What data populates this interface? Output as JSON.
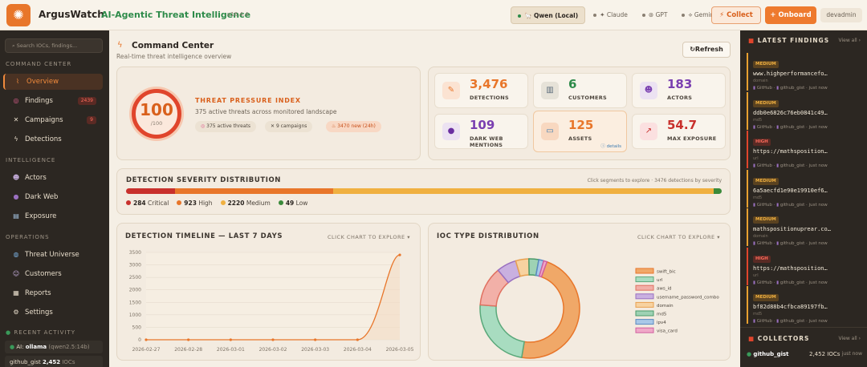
{
  "header": {
    "brand": "ArgusWatch",
    "brand_sub": "AI-Agentic Threat Intelligence",
    "version": "v16.4.4",
    "models": [
      "Qwen (Local)",
      "Claude",
      "GPT",
      "Gemini"
    ],
    "collect": "Collect",
    "onboard": "Onboard",
    "user": "devadmin"
  },
  "sidebar": {
    "search_placeholder": "Search IOCs, findings...",
    "sections": [
      "COMMAND CENTER",
      "INTELLIGENCE",
      "OPERATIONS",
      "RECENT ACTIVITY"
    ],
    "items": [
      {
        "label": "Overview",
        "icon": "pulse-icon"
      },
      {
        "label": "Findings",
        "icon": "target-icon",
        "badge": "2439"
      },
      {
        "label": "Campaigns",
        "icon": "swords-icon",
        "badge": "9"
      },
      {
        "label": "Detections",
        "icon": "bolt-icon"
      },
      {
        "label": "Actors",
        "icon": "actors-icon"
      },
      {
        "label": "Dark Web",
        "icon": "darkweb-icon"
      },
      {
        "label": "Exposure",
        "icon": "chart-icon"
      },
      {
        "label": "Threat Universe",
        "icon": "globe-icon"
      },
      {
        "label": "Customers",
        "icon": "customers-icon"
      },
      {
        "label": "Reports",
        "icon": "reports-icon"
      },
      {
        "label": "Settings",
        "icon": "gear-icon"
      }
    ],
    "recent": [
      {
        "name": "AI:",
        "value": "ollama",
        "extra": "(qwen2.5:14b)"
      },
      {
        "name": "github_gist",
        "value": "2,452",
        "extra": "IOCs"
      }
    ]
  },
  "main": {
    "title": "Command Center",
    "subtitle": "Real-time threat intelligence overview",
    "refresh": "Refresh",
    "tpi": {
      "score": "100",
      "denominator": "/100",
      "title": "THREAT PRESSURE INDEX",
      "desc": "375 active threats across monitored landscape",
      "pills": [
        "375 active threats",
        "9 campaigns",
        "3470 new (24h)"
      ]
    },
    "stats": [
      {
        "value": "3,476",
        "label": "DETECTIONS",
        "color": "#e8762a",
        "icon": "detections-icon"
      },
      {
        "value": "6",
        "label": "CUSTOMERS",
        "color": "#2e8b4a",
        "icon": "building-icon"
      },
      {
        "value": "183",
        "label": "ACTORS",
        "color": "#7a3fb0",
        "icon": "actors-icon"
      },
      {
        "value": "109",
        "label": "DARK WEB\nMENTIONS",
        "color": "#7a3fb0",
        "icon": "darkweb-icon"
      },
      {
        "value": "125",
        "label": "ASSETS",
        "color": "#e8762a",
        "icon": "monitor-icon",
        "link": "details"
      },
      {
        "value": "54.7",
        "label": "MAX EXPOSURE",
        "color": "#c8302c",
        "icon": "exposure-icon"
      }
    ],
    "severity": {
      "title": "DETECTION SEVERITY DISTRIBUTION",
      "hint": "Click segments to explore · 3476 detections by severity",
      "segments": [
        {
          "label": "Critical",
          "value": 284,
          "color": "#c8302c"
        },
        {
          "label": "High",
          "value": 923,
          "color": "#e8762a"
        },
        {
          "label": "Medium",
          "value": 2220,
          "color": "#f0b040"
        },
        {
          "label": "Low",
          "value": 49,
          "color": "#3a8a3a"
        }
      ]
    },
    "timeline": {
      "title": "DETECTION TIMELINE — LAST 7 DAYS",
      "link": "CLICK CHART TO EXPLORE"
    },
    "ioc": {
      "title": "IOC TYPE DISTRIBUTION",
      "link": "CLICK CHART TO EXPLORE"
    }
  },
  "chart_data": [
    {
      "type": "area",
      "title": "DETECTION TIMELINE — LAST 7 DAYS",
      "x": [
        "2026-02-27",
        "2026-02-28",
        "2026-03-01",
        "2026-03-02",
        "2026-03-03",
        "2026-03-04",
        "2026-03-05"
      ],
      "values": [
        0,
        0,
        0,
        0,
        0,
        0,
        3400
      ],
      "yticks": [
        0,
        500,
        1000,
        1500,
        2000,
        2500,
        3000,
        3500
      ],
      "ylim": [
        0,
        3500
      ],
      "color": "#e8762a"
    },
    {
      "type": "pie",
      "title": "IOC TYPE DISTRIBUTION",
      "categories": [
        "swift_bic",
        "url",
        "aws_id",
        "username_password_combo",
        "domain",
        "md5",
        "ipv4",
        "visa_card"
      ],
      "values": [
        44,
        22,
        12,
        6,
        4,
        3,
        1.5,
        1
      ],
      "colors": [
        "#f0a868",
        "#a8dcc0",
        "#f2b0a8",
        "#c9b0e0",
        "#f7d2a0",
        "#9ed2b4",
        "#a9c8e8",
        "#f0a8c8"
      ],
      "border_colors": [
        "#e8762a",
        "#5aa87a",
        "#e07060",
        "#9a70c0",
        "#e8a050",
        "#4a9a6a",
        "#5a8ac0",
        "#d060a0"
      ]
    }
  ],
  "right": {
    "findings_title": "LATEST FINDINGS",
    "view_all": "View all",
    "findings": [
      {
        "sev": "MEDIUM",
        "text": "www.highperformancefo…",
        "type": "domain",
        "source": "GitHub",
        "collector": "github_gist",
        "time": "just now"
      },
      {
        "sev": "MEDIUM",
        "text": "ddb0e6826c76eb0841c49…",
        "type": "md5",
        "source": "GitHub",
        "collector": "github_gist",
        "time": "just now"
      },
      {
        "sev": "HIGH",
        "text": "https://mathsposition…",
        "type": "url",
        "source": "GitHub",
        "collector": "github_gist",
        "time": "just now"
      },
      {
        "sev": "MEDIUM",
        "text": "6a5aecfd1e90e19910ef6…",
        "type": "md5",
        "source": "GitHub",
        "collector": "github_gist",
        "time": "just now"
      },
      {
        "sev": "MEDIUM",
        "text": "mathspositionuprear.co…",
        "type": "domain",
        "source": "GitHub",
        "collector": "github_gist",
        "time": "just now"
      },
      {
        "sev": "HIGH",
        "text": "https://mathsposition…",
        "type": "url",
        "source": "GitHub",
        "collector": "github_gist",
        "time": "just now"
      },
      {
        "sev": "MEDIUM",
        "text": "bf82d88b4cfbca89197fb…",
        "type": "md5",
        "source": "GitHub",
        "collector": "github_gist",
        "time": "just now"
      }
    ],
    "collectors_title": "COLLECTORS",
    "collectors": [
      {
        "name": "github_gist",
        "count": "2,452 IOCs",
        "time": "just now"
      }
    ]
  }
}
